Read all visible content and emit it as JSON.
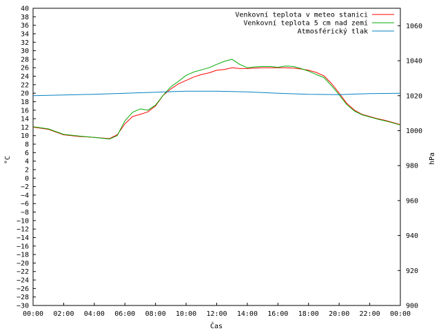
{
  "chart_data": {
    "type": "line",
    "xlabel": "Čas",
    "ylabel_left": "°C",
    "ylabel_right": "hPa",
    "x_ticks": [
      "00:00",
      "02:00",
      "04:00",
      "06:00",
      "08:00",
      "10:00",
      "12:00",
      "14:00",
      "16:00",
      "18:00",
      "20:00",
      "22:00",
      "00:00"
    ],
    "x_range_hours": [
      0,
      24
    ],
    "y_left_range": [
      -30,
      40
    ],
    "y_left_step": 2,
    "y_right_range": [
      900,
      1070
    ],
    "y_right_ticks": [
      900,
      920,
      940,
      960,
      980,
      1000,
      1020,
      1040,
      1060
    ],
    "grid": false,
    "legend_position": "top-right",
    "series": [
      {
        "name": "Venkovní teplota v meteo stanici",
        "color": "#ff0000",
        "axis": "left",
        "x": [
          0,
          1,
          2,
          3,
          4,
          5,
          5.5,
          6,
          6.5,
          7,
          7.5,
          8,
          8.5,
          9,
          9.5,
          10,
          10.5,
          11,
          11.5,
          12,
          12.5,
          13,
          13.5,
          14,
          14.5,
          15,
          15.5,
          16,
          16.5,
          17,
          17.5,
          18,
          18.5,
          19,
          19.5,
          20,
          20.5,
          21,
          21.5,
          22,
          22.5,
          23,
          23.5,
          24
        ],
        "values": [
          12.0,
          11.5,
          10.2,
          9.8,
          9.6,
          9.3,
          10.2,
          12.8,
          14.5,
          15.0,
          15.6,
          17.0,
          19.5,
          21.0,
          22.2,
          23.0,
          23.8,
          24.4,
          24.8,
          25.4,
          25.6,
          26.0,
          25.8,
          25.8,
          25.9,
          26.0,
          26.0,
          26.0,
          26.0,
          25.9,
          25.7,
          25.4,
          24.9,
          24.1,
          22.3,
          20.0,
          17.6,
          16.0,
          15.0,
          14.5,
          14.0,
          13.6,
          13.1,
          12.6
        ]
      },
      {
        "name": "Venkovní teplota 5 cm nad zemí",
        "color": "#00aa00",
        "axis": "left",
        "x": [
          0,
          1,
          2,
          3,
          4,
          5,
          5.5,
          6,
          6.5,
          7,
          7.5,
          8,
          8.5,
          9,
          9.5,
          10,
          10.5,
          11,
          11.5,
          12,
          12.5,
          13,
          13.5,
          14,
          14.5,
          15,
          15.5,
          16,
          16.5,
          17,
          17.5,
          18,
          18.5,
          19,
          19.5,
          20,
          20.5,
          21,
          21.5,
          22,
          22.5,
          23,
          23.5,
          24
        ],
        "values": [
          12.1,
          11.6,
          10.3,
          9.9,
          9.6,
          9.2,
          10.0,
          13.5,
          15.5,
          16.3,
          16.0,
          17.2,
          19.5,
          21.5,
          22.8,
          24.2,
          25.0,
          25.5,
          26.0,
          26.8,
          27.5,
          28.0,
          26.8,
          26.0,
          26.2,
          26.3,
          26.3,
          26.1,
          26.4,
          26.3,
          25.8,
          25.2,
          24.4,
          23.7,
          21.8,
          19.6,
          17.3,
          15.8,
          14.9,
          14.4,
          13.9,
          13.5,
          13.0,
          12.5
        ]
      },
      {
        "name": "Atmosférický tlak",
        "color": "#0080c0",
        "axis": "right",
        "x": [
          0,
          2,
          4,
          6,
          8,
          10,
          12,
          14,
          16,
          18,
          20,
          22,
          24
        ],
        "values": [
          1020.0,
          1020.4,
          1020.8,
          1021.4,
          1022.0,
          1022.6,
          1022.6,
          1022.2,
          1021.4,
          1020.8,
          1020.6,
          1021.2,
          1021.4
        ]
      }
    ]
  }
}
